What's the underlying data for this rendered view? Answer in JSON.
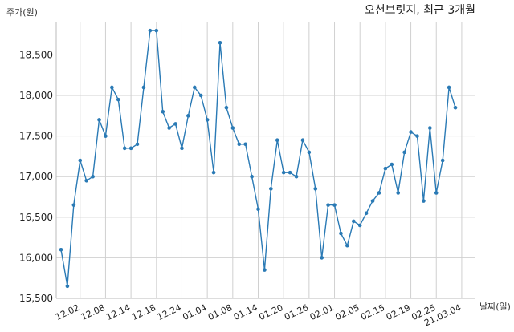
{
  "chart_data": {
    "type": "line",
    "title": "오션브릿지, 최근 3개월",
    "ylabel": "주가(원)",
    "xlabel": "날짜(일)",
    "ylim": [
      15500,
      18900
    ],
    "grid": true,
    "line_color": "#2a7ab5",
    "xticks": [
      {
        "label": "12.02",
        "at": 3
      },
      {
        "label": "12.08",
        "at": 7
      },
      {
        "label": "12.14",
        "at": 11
      },
      {
        "label": "12.18",
        "at": 15
      },
      {
        "label": "12.24",
        "at": 19
      },
      {
        "label": "01.04",
        "at": 23
      },
      {
        "label": "01.08",
        "at": 27
      },
      {
        "label": "01.14",
        "at": 31
      },
      {
        "label": "01.20",
        "at": 35
      },
      {
        "label": "01.26",
        "at": 39
      },
      {
        "label": "02.01",
        "at": 43
      },
      {
        "label": "02.05",
        "at": 47
      },
      {
        "label": "02.15",
        "at": 51
      },
      {
        "label": "02.19",
        "at": 55
      },
      {
        "label": "02.25",
        "at": 59
      },
      {
        "label": "21.03.04",
        "at": 63
      }
    ],
    "yticks": [
      "15,500",
      "16,000",
      "16,500",
      "17,000",
      "17,500",
      "18,000",
      "18,500"
    ],
    "ytick_values": [
      15500,
      16000,
      16500,
      17000,
      17500,
      18000,
      18500
    ],
    "series": [
      {
        "values": [
          16100,
          15650,
          16650,
          17200,
          16950,
          17000,
          17700,
          17500,
          18100,
          17950,
          17350,
          17350,
          17400,
          18100,
          18800,
          18800,
          17800,
          17600,
          17650,
          17350,
          17750,
          18100,
          18000,
          17700,
          17050,
          18650,
          17850,
          17600,
          17400,
          17400,
          17000,
          16600,
          15850,
          16850,
          17450,
          17050,
          17050,
          17000,
          17450,
          17300,
          16850,
          16000,
          16650,
          16650,
          16300,
          16150,
          16450,
          16400,
          16550,
          16700,
          16800,
          17100,
          17150,
          16800,
          17300,
          17550,
          17500,
          16700,
          17600,
          16800,
          17200,
          18100,
          17850
        ]
      }
    ]
  }
}
